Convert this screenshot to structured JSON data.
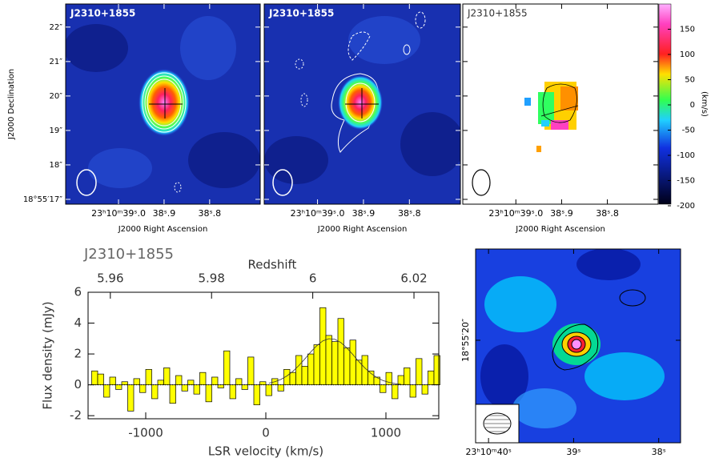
{
  "chart_data": [
    {
      "type": "map",
      "label": "J2310+1855",
      "xlabel": "J2000 Right Ascension",
      "ylabel": "J2000 Declination",
      "xlim": [
        39.116,
        38.689
      ],
      "ylim": [
        16.86,
        22.67
      ],
      "xticks": [
        {
          "value": 39.0,
          "label": "23ʰ10ᵐ39ˢ.0"
        },
        {
          "value": 38.9,
          "label": "38ˢ.9"
        },
        {
          "value": 38.8,
          "label": "38ˢ.8"
        }
      ],
      "yticks": [
        {
          "value": 22,
          "label": "22″"
        },
        {
          "value": 21,
          "label": "21″"
        },
        {
          "value": 20,
          "label": "20″"
        },
        {
          "value": 19,
          "label": "19″"
        },
        {
          "value": 18,
          "label": "18″"
        },
        {
          "value": 17,
          "label": "18°55′17″"
        }
      ]
    },
    {
      "type": "map",
      "label": "J2310+1855",
      "xlabel": "J2000 Right Ascension",
      "xlim": [
        39.116,
        38.689
      ],
      "ylim": [
        16.86,
        22.67
      ],
      "xticks": [
        {
          "value": 39.0,
          "label": "23ʰ10ᵐ39ˢ.0"
        },
        {
          "value": 38.9,
          "label": "38ˢ.9"
        },
        {
          "value": 38.8,
          "label": "38ˢ.8"
        }
      ],
      "yticks": [
        22,
        21,
        20,
        19,
        18,
        17
      ]
    },
    {
      "type": "map",
      "label": "J2310+1855",
      "xlabel": "J2000 Right Ascension",
      "xlim": [
        39.116,
        38.689
      ],
      "ylim": [
        16.86,
        22.67
      ],
      "xticks": [
        {
          "value": 39.0,
          "label": "23ʰ10ᵐ39ˢ.0"
        },
        {
          "value": 38.9,
          "label": "38ˢ.9"
        },
        {
          "value": 38.8,
          "label": "38ˢ.8"
        }
      ],
      "yticks": [
        22,
        21,
        20,
        19,
        18,
        17
      ],
      "colorbar": {
        "label": "(km/s)",
        "lim": [
          -200,
          200
        ],
        "ticks": [
          150,
          100,
          50,
          0,
          -50,
          -100,
          -150,
          -200
        ]
      }
    },
    {
      "type": "histogram",
      "title": "J2310+1855",
      "xlabel": "LSR velocity (km/s)",
      "ylabel": "Flux density (mJy)",
      "x2label": "Redshift",
      "color": "#ffff00",
      "bins": [
        -1450,
        -1400,
        -1350,
        -1300,
        -1250,
        -1200,
        -1150,
        -1100,
        -1050,
        -1000,
        -950,
        -900,
        -850,
        -800,
        -750,
        -700,
        -650,
        -600,
        -550,
        -500,
        -450,
        -400,
        -350,
        -300,
        -250,
        -200,
        -150,
        -100,
        -50,
        0,
        50,
        100,
        150,
        200,
        250,
        300,
        350,
        400,
        450,
        500,
        550,
        600,
        650,
        700,
        750,
        800,
        850,
        900,
        950,
        1000,
        1050,
        1100,
        1150,
        1200,
        1250,
        1300,
        1350,
        1400,
        1450
      ],
      "values": [
        0.9,
        0.7,
        -0.8,
        0.5,
        -0.3,
        0.2,
        -1.7,
        0.4,
        -0.5,
        1.0,
        -0.9,
        0.3,
        1.1,
        -1.2,
        0.6,
        -0.4,
        0.3,
        -0.6,
        0.8,
        -1.1,
        0.5,
        -0.2,
        2.2,
        -0.9,
        0.4,
        -0.3,
        1.8,
        -1.3,
        0.2,
        -0.7,
        0.4,
        -0.4,
        1.0,
        0.8,
        1.9,
        1.2,
        2.0,
        2.6,
        5.0,
        3.2,
        2.8,
        4.3,
        2.4,
        2.9,
        1.6,
        1.9,
        0.9,
        0.5,
        -0.5,
        0.8,
        -0.9,
        0.6,
        1.1,
        -0.8,
        1.7,
        -0.6,
        0.9,
        1.9
      ],
      "fit": {
        "x": [
          25,
          75,
          125,
          175,
          225,
          275,
          325,
          375,
          425,
          475,
          525,
          575,
          625,
          675,
          725,
          775,
          825,
          875,
          925,
          975,
          1025,
          1075,
          1125
        ],
        "values": [
          0.11,
          0.2,
          0.35,
          0.57,
          0.87,
          1.25,
          1.68,
          2.14,
          2.54,
          2.85,
          2.99,
          2.95,
          2.74,
          2.39,
          1.96,
          1.5,
          1.09,
          0.74,
          0.47,
          0.28,
          0.16,
          0.08,
          0.04
        ]
      },
      "xlim": [
        -1480,
        1440
      ],
      "xticks": [
        -1000,
        0,
        1000
      ],
      "ylim": [
        -2.2,
        6
      ],
      "yticks": [
        -2,
        0,
        2,
        4,
        6
      ],
      "x2lim": [
        5.9556,
        6.0249
      ],
      "x2ticks": [
        5.96,
        5.98,
        6,
        6.02
      ]
    },
    {
      "type": "map",
      "xlim": [
        40.152,
        37.743
      ],
      "ylim": [
        2.7,
        35.4
      ],
      "xticks": [
        {
          "value": 40,
          "label": "23ʰ10ᵐ40ˢ"
        },
        {
          "value": 39,
          "label": "39ˢ"
        },
        {
          "value": 38,
          "label": "38ˢ"
        }
      ],
      "yticks": [
        {
          "value": 20,
          "label": "18°55′20″"
        }
      ]
    }
  ]
}
